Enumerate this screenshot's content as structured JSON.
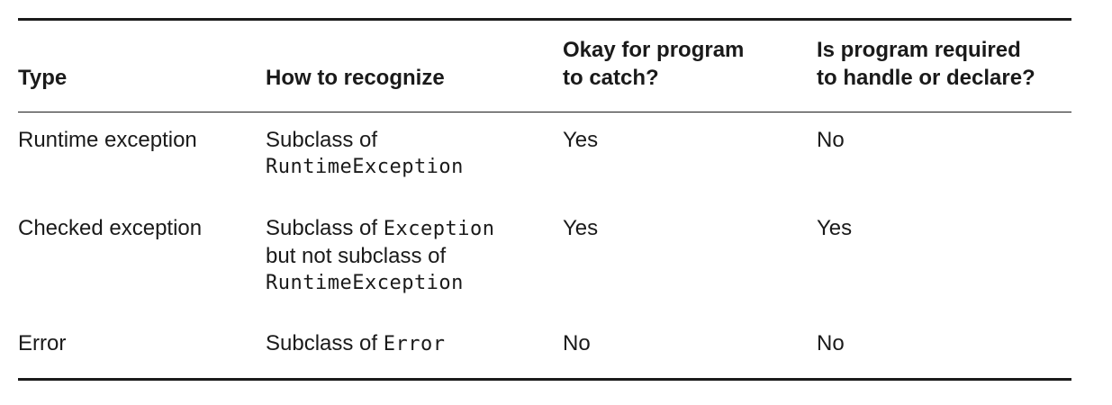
{
  "table": {
    "headers": {
      "type": "Type",
      "how": "How to recognize",
      "catch_line1": "Okay for program",
      "catch_line2": "to catch?",
      "required_line1": "Is program required",
      "required_line2": "to handle or declare?"
    },
    "rows": [
      {
        "type": "Runtime exception",
        "how_line1": "Subclass of",
        "how_line2_code": "RuntimeException",
        "catch": "Yes",
        "required": "No"
      },
      {
        "type": "Checked exception",
        "how_line1_text": "Subclass of ",
        "how_line1_code": "Exception",
        "how_line2": "but not subclass of",
        "how_line3_code": "RuntimeException",
        "catch": "Yes",
        "required": "Yes"
      },
      {
        "type": "Error",
        "how_line1_text": "Subclass of ",
        "how_line1_code": "Error",
        "catch": "No",
        "required": "No"
      }
    ]
  }
}
